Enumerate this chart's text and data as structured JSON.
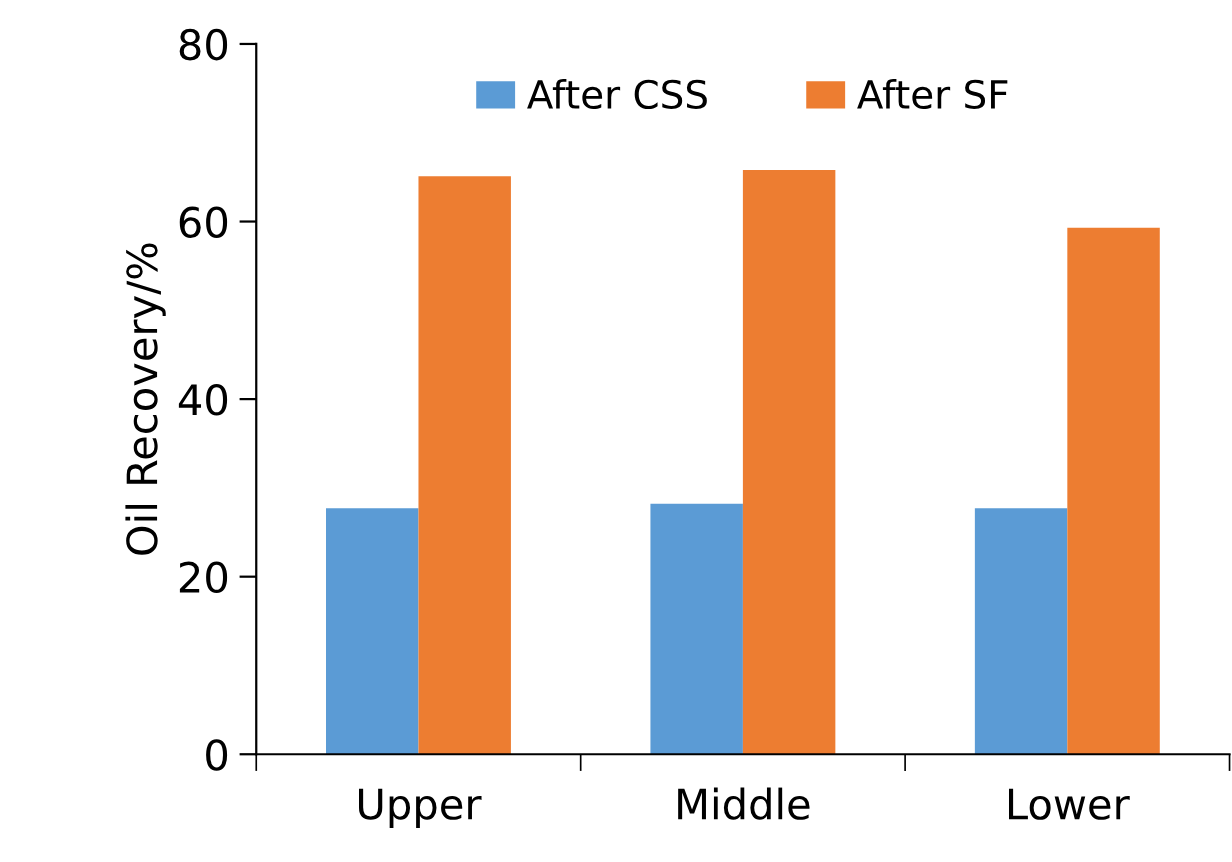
{
  "chart_data": {
    "type": "bar",
    "ylabel": "Oil Recovery/%",
    "categories": [
      "Upper",
      "Middle",
      "Lower"
    ],
    "series": [
      {
        "name": "After CSS",
        "color": "#5b9bd5",
        "values": [
          27.7,
          28.2,
          27.7
        ]
      },
      {
        "name": "After SF",
        "color": "#ed7d31",
        "values": [
          65.1,
          65.8,
          59.3
        ]
      }
    ],
    "ylim": [
      0,
      80
    ],
    "yticks": [
      0,
      20,
      40,
      60,
      80
    ],
    "grid": false,
    "legend": "top"
  }
}
